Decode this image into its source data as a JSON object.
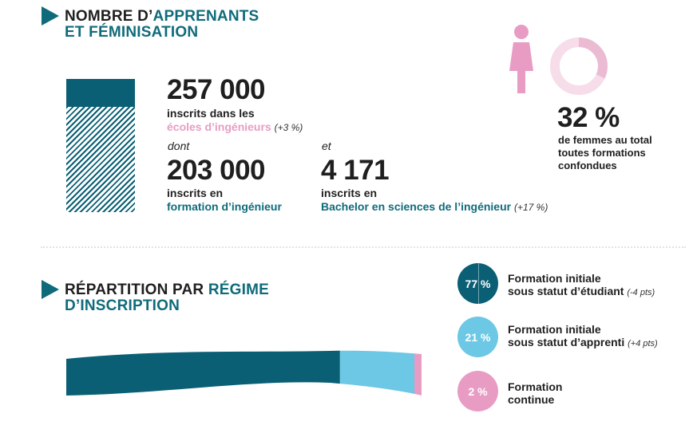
{
  "section1": {
    "title_part1": "NOMBRE D’",
    "title_part2": "APPRENANTS",
    "title_line2": "ET FÉMINISATION"
  },
  "total": {
    "value": "257 000",
    "label_line1": "inscrits dans les",
    "label_line2": "écoles d’ingénieurs",
    "change": "(+3 %)"
  },
  "connector_dont": "dont",
  "connector_et": "et",
  "ingenieur": {
    "value": "203 000",
    "label_line1": "inscrits en",
    "label_line2": "formation d’ingénieur"
  },
  "bachelor": {
    "value": "4 171",
    "label_line1": "inscrits en",
    "label_line2": "Bachelor en sciences de l’ingénieur",
    "change": "(+17 %)"
  },
  "women": {
    "value": "32 %",
    "label_line1": "de femmes au total",
    "label_line2": "toutes formations",
    "label_line3": "confondues",
    "icon": "woman-icon"
  },
  "section2": {
    "title_part1": "RÉPARTITION PAR ",
    "title_part2": "RÉGIME",
    "title_line2": "D’INSCRIPTION"
  },
  "regimes": [
    {
      "pct": "77 %",
      "label_line1": "Formation initiale",
      "label_line2": "sous statut d’étudiant",
      "note": "(-4 pts)"
    },
    {
      "pct": "21 %",
      "label_line1": "Formation initiale",
      "label_line2": "sous statut d’apprenti",
      "note": "(+4 pts)"
    },
    {
      "pct": "2 %",
      "label_line1": "Formation",
      "label_line2": "continue",
      "note": ""
    }
  ],
  "colors": {
    "teal_dark": "#0a5f74",
    "teal_heading": "#0f6b7a",
    "light_blue": "#6cc8e4",
    "pink": "#e89cc4",
    "pink_light": "#f6dde9"
  },
  "chart_data": [
    {
      "type": "bar",
      "categories": [
        "inscrits dans les écoles d’ingénieurs",
        "formation d’ingénieur"
      ],
      "values": [
        257000,
        203000
      ]
    },
    {
      "type": "pie",
      "categories": [
        "femmes"
      ],
      "values": [
        32
      ]
    },
    {
      "type": "bar",
      "stacked": true,
      "categories": [
        "Formation initiale sous statut d’étudiant",
        "Formation initiale sous statut d’apprenti",
        "Formation continue"
      ],
      "values": [
        77,
        21,
        2
      ],
      "colors": [
        "#0a5f74",
        "#6cc8e4",
        "#e89cc4"
      ]
    }
  ]
}
